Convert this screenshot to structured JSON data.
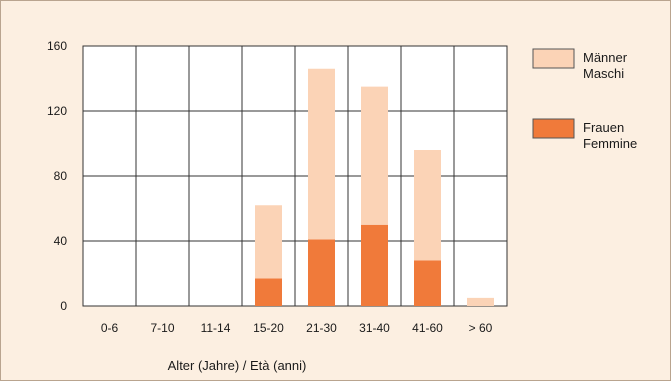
{
  "chart_data": {
    "type": "bar",
    "stacked": true,
    "title": "",
    "xlabel": "Alter (Jahre) / Età (anni)",
    "ylabel": "",
    "categories": [
      "0-6",
      "7-10",
      "11-14",
      "15-20",
      "21-30",
      "31-40",
      "41-60",
      "> 60"
    ],
    "ylim": [
      0,
      160
    ],
    "yticks": [
      0,
      40,
      80,
      120,
      160
    ],
    "grid": true,
    "legend_position": "right",
    "series": [
      {
        "name": "Frauen Femmine",
        "legend_lines": [
          "Frauen",
          "Femmine"
        ],
        "color": "#f07a3a",
        "values": [
          0,
          0,
          0,
          17,
          41,
          50,
          28,
          0
        ]
      },
      {
        "name": "Männer Maschi",
        "legend_lines": [
          "Männer",
          "Maschi"
        ],
        "color": "#fbd3b6",
        "values": [
          0,
          0,
          0,
          45,
          105,
          85,
          68,
          5
        ]
      }
    ]
  }
}
